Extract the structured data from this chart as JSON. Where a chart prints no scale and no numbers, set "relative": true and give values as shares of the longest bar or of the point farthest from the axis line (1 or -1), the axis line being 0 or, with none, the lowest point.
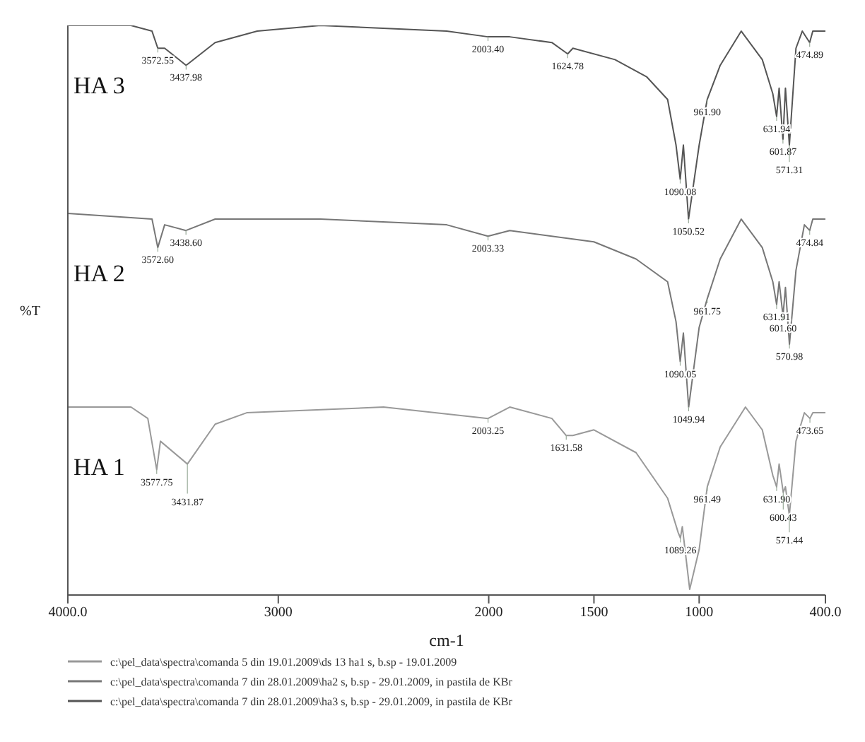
{
  "chart_data": {
    "type": "line",
    "relative": true,
    "xlabel": "cm-1",
    "ylabel": "%T",
    "xlim": [
      4000,
      400
    ],
    "xticks": [
      {
        "value": 4000,
        "label": "4000.0"
      },
      3000,
      2000,
      1500,
      1000,
      {
        "value": 400,
        "label": "400.0"
      }
    ],
    "legend": "bottom",
    "grid": false,
    "marker": "none",
    "line_style": "solid",
    "series": [
      {
        "name": "c:\\pel_data\\spectra\\comanda 7 din 28.01.2009\\ha3 s, b.sp - 29.01.2009, in pastila de KBr",
        "color": "#555555",
        "x": [
          4000,
          3700,
          3600,
          3572.55,
          3540,
          3437.98,
          3300,
          3100,
          2800,
          2200,
          2003.4,
          1900,
          1700,
          1624.78,
          1600,
          1400,
          1250,
          1150,
          1110,
          1090.08,
          1075,
          1050.52,
          1000,
          961.9,
          900,
          800,
          700,
          650,
          631.94,
          620,
          601.87,
          590,
          571.31,
          540,
          510,
          474.89,
          460,
          400
        ],
        "values": [
          1.0,
          1.0,
          0.99,
          0.96,
          0.96,
          0.93,
          0.97,
          0.99,
          1.0,
          0.99,
          0.98,
          0.98,
          0.97,
          0.95,
          0.96,
          0.94,
          0.91,
          0.87,
          0.79,
          0.73,
          0.79,
          0.66,
          0.79,
          0.87,
          0.93,
          0.99,
          0.94,
          0.88,
          0.84,
          0.89,
          0.8,
          0.89,
          0.79,
          0.96,
          0.99,
          0.97,
          0.99,
          0.99
        ]
      },
      {
        "name": "c:\\pel_data\\spectra\\comanda 7 din 28.01.2009\\ha2 s, b.sp - 29.01.2009, in pastila de KBr",
        "color": "#777777",
        "x": [
          4000,
          3600,
          3572.6,
          3540,
          3438.6,
          3300,
          2800,
          2200,
          2003.33,
          1900,
          1500,
          1300,
          1150,
          1110,
          1090.05,
          1075,
          1049.94,
          1000,
          961.75,
          900,
          800,
          700,
          650,
          631.91,
          620,
          601.6,
          590,
          570.98,
          540,
          500,
          474.84,
          460,
          400
        ],
        "values": [
          0.67,
          0.66,
          0.61,
          0.65,
          0.64,
          0.66,
          0.66,
          0.65,
          0.63,
          0.64,
          0.62,
          0.59,
          0.55,
          0.48,
          0.41,
          0.46,
          0.33,
          0.47,
          0.52,
          0.59,
          0.66,
          0.61,
          0.55,
          0.51,
          0.55,
          0.49,
          0.54,
          0.44,
          0.57,
          0.65,
          0.64,
          0.66,
          0.66
        ]
      },
      {
        "name": "c:\\pel_data\\spectra\\comanda 5 din 19.01.2009\\ds 13 ha1 s, b.sp - 19.01.2009",
        "color": "#999999",
        "x": [
          4000,
          3700,
          3620,
          3577.75,
          3560,
          3431.87,
          3300,
          3150,
          2500,
          2003.25,
          1900,
          1700,
          1631.58,
          1600,
          1500,
          1300,
          1150,
          1100,
          1089.26,
          1080,
          1045,
          1000,
          961.49,
          900,
          780,
          700,
          650,
          631.9,
          620,
          600.43,
          590,
          571.44,
          540,
          500,
          473.65,
          460,
          400
        ],
        "values": [
          0.33,
          0.33,
          0.31,
          0.22,
          0.27,
          0.23,
          0.3,
          0.32,
          0.33,
          0.31,
          0.33,
          0.31,
          0.28,
          0.28,
          0.29,
          0.25,
          0.17,
          0.11,
          0.1,
          0.12,
          0.01,
          0.08,
          0.19,
          0.26,
          0.33,
          0.29,
          0.21,
          0.19,
          0.23,
          0.18,
          0.19,
          0.14,
          0.27,
          0.32,
          0.31,
          0.32,
          0.32
        ]
      }
    ],
    "annotations": [
      "HA 3",
      "HA 2",
      "HA 1",
      {
        "text": "3572.55",
        "x": 3572.55,
        "y": 0.96
      },
      {
        "text": "3437.98",
        "x": 3437.98,
        "y": 0.93
      },
      {
        "text": "2003.40",
        "x": 2003.4,
        "y": 0.98
      },
      {
        "text": "1624.78",
        "x": 1624.78,
        "y": 0.95
      },
      {
        "text": "1090.08",
        "x": 1090.08,
        "y": 0.73
      },
      {
        "text": "1050.52",
        "x": 1050.52,
        "y": 0.66
      },
      {
        "text": "961.90",
        "x": 961.9,
        "y": 0.87
      },
      {
        "text": "631.94",
        "x": 631.94,
        "y": 0.84
      },
      {
        "text": "601.87",
        "x": 601.87,
        "y": 0.8
      },
      {
        "text": "571.31",
        "x": 571.31,
        "y": 0.79
      },
      {
        "text": "474.89",
        "x": 474.89,
        "y": 0.97
      },
      {
        "text": "3572.60",
        "x": 3572.6,
        "y": 0.61
      },
      {
        "text": "3438.60",
        "x": 3438.6,
        "y": 0.64
      },
      {
        "text": "2003.33",
        "x": 2003.33,
        "y": 0.63
      },
      {
        "text": "1090.05",
        "x": 1090.05,
        "y": 0.41
      },
      {
        "text": "1049.94",
        "x": 1049.94,
        "y": 0.33
      },
      {
        "text": "961.75",
        "x": 961.75,
        "y": 0.52
      },
      {
        "text": "631.91",
        "x": 631.91,
        "y": 0.51
      },
      {
        "text": "601.60",
        "x": 601.6,
        "y": 0.49
      },
      {
        "text": "570.98",
        "x": 570.98,
        "y": 0.44
      },
      {
        "text": "474.84",
        "x": 474.84,
        "y": 0.64
      },
      {
        "text": "3577.75",
        "x": 3577.75,
        "y": 0.22
      },
      {
        "text": "3431.87",
        "x": 3431.87,
        "y": 0.23
      },
      {
        "text": "2003.25",
        "x": 2003.25,
        "y": 0.31
      },
      {
        "text": "1631.58",
        "x": 1631.58,
        "y": 0.28
      },
      {
        "text": "1089.26",
        "x": 1089.26,
        "y": 0.1
      },
      {
        "text": "961.49",
        "x": 961.49,
        "y": 0.19
      },
      {
        "text": "631.90",
        "x": 631.9,
        "y": 0.19
      },
      {
        "text": "600.43",
        "x": 600.43,
        "y": 0.18
      },
      {
        "text": "571.44",
        "x": 571.44,
        "y": 0.14
      },
      {
        "text": "473.65",
        "x": 473.65,
        "y": 0.31
      }
    ]
  }
}
